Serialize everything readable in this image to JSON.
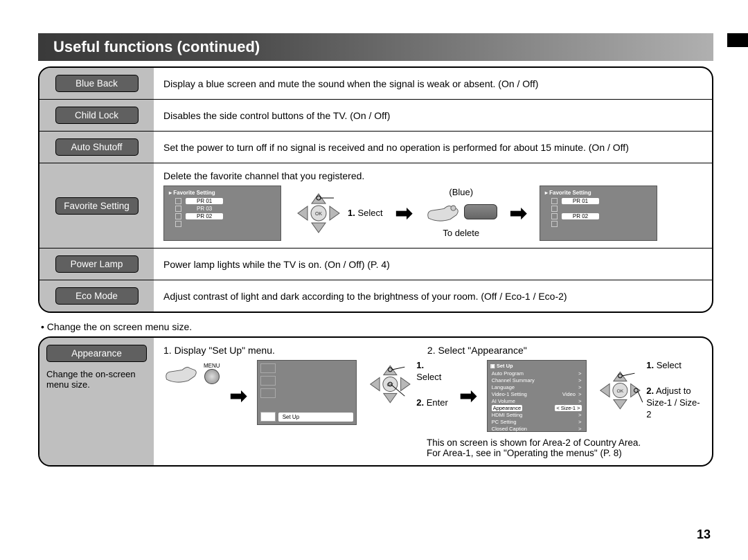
{
  "title": "Useful functions (continued)",
  "page_number": "13",
  "colors": {
    "title_gradient_start": "#3a3a3a",
    "title_gradient_end": "#b0b0b0",
    "label_bg": "#bfbfbf",
    "pill_bg": "#606060",
    "osd_bg": "#858585"
  },
  "rows": [
    {
      "label": "Blue Back",
      "desc": "Display a blue screen and mute the sound when the signal is weak or absent. (On / Off)"
    },
    {
      "label": "Child Lock",
      "desc": "Disables the side control buttons of the TV. (On / Off)"
    },
    {
      "label": "Auto Shutoff",
      "desc": "Set the power to turn off if no signal is received and no operation is performed for about 15 minute. (On / Off)"
    },
    {
      "label": "Favorite Setting",
      "desc": "Delete the favorite channel that you registered."
    },
    {
      "label": "Power Lamp",
      "desc": "Power lamp lights while the TV is on. (On / Off) (P. 4)"
    },
    {
      "label": "Eco Mode",
      "desc": "Adjust contrast of light and dark according to the brightness of your room. (Off / Eco-1 / Eco-2)"
    }
  ],
  "favorite": {
    "osd_title": "▸ Favorite Setting",
    "before": [
      "PR 01",
      "PR 03",
      "PR 02"
    ],
    "after": [
      "PR 01",
      "PR 02"
    ],
    "select_label": "1. Select",
    "blue_label": "(Blue)",
    "delete_label": "To delete"
  },
  "note": "• Change the on screen menu size.",
  "appearance": {
    "label": "Appearance",
    "desc": "Change the on-screen menu size.",
    "step1_title": "1. Display \"Set Up\" menu.",
    "step2_title": "2. Select \"Appearance\"",
    "menu_label": "MENU",
    "setup_label": "Set Up",
    "select": "1. Select",
    "enter": "2. Enter",
    "adjust": "2. Adjust to",
    "sizes": "Size-1 / Size-2",
    "setup_items": [
      "Auto Program",
      "Channel Summary",
      "Language",
      "Video-1 Setting",
      "AI Volume",
      "Appearance",
      "HDMI Setting",
      "PC Setting",
      "Closed Caption"
    ],
    "setup_vals": {
      "Video-1 Setting": "Video",
      "Appearance": "Size-1"
    },
    "setup_title": "Set Up",
    "footer1": "This on screen is shown for Area-2 of Country Area.",
    "footer2": "For Area-1, see in \"Operating the menus\" (P. 8)"
  }
}
